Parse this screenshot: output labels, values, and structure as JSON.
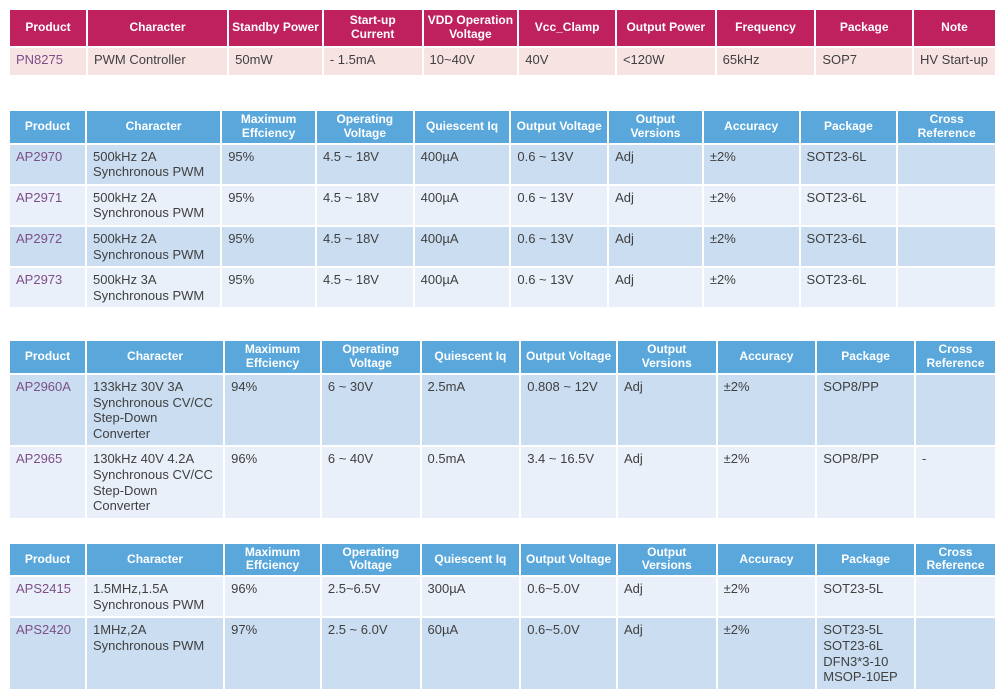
{
  "colors": {
    "red_header_bg": "#BE215E",
    "red_row_bg": "#F8E3E3",
    "blue_header_bg": "#59A7DB",
    "blue_row_dark_bg": "#CADDF1",
    "blue_row_light_bg": "#EAF0FA",
    "header_text": "#FFFFFF",
    "body_text": "#404040",
    "product_text": "#7D4E87"
  },
  "tables": [
    {
      "name": "pn8275-pwm-controller-table",
      "theme": "red",
      "columns": [
        "Product",
        "Character",
        "Standby Power",
        "Start-up Current",
        "VDD Operation Voltage",
        "Vcc_Clamp",
        "Output Power",
        "Frequency",
        "Package",
        "Note"
      ],
      "col_widths": [
        "7.9%",
        "14.3%",
        "9.6%",
        "10.1%",
        "9.7%",
        "9.9%",
        "10.1%",
        "10.1%",
        "9.9%",
        "8.4%"
      ],
      "rows": [
        {
          "shade": "pink",
          "cells": [
            "PN8275",
            "PWM Controller",
            "50mW",
            "- 1.5mA",
            "10~40V",
            "40V",
            "<120W",
            "65kHz",
            "SOP7",
            "HV Start-up"
          ]
        }
      ]
    },
    {
      "name": "ap2970-series-table",
      "theme": "blue",
      "columns": [
        "Product",
        "Character",
        "Maximum Effciency",
        "Operating Voltage",
        "Quiescent Iq",
        "Output Voltage",
        "Output Versions",
        "Accuracy",
        "Package",
        "Cross Reference"
      ],
      "col_widths": [
        "7.8%",
        "13.7%",
        "9.6%",
        "9.9%",
        "9.8%",
        "9.9%",
        "9.6%",
        "9.8%",
        "9.9%",
        "10.0%"
      ],
      "rows": [
        {
          "shade": "dark",
          "cells": [
            "AP2970",
            "500kHz 2A Synchronous PWM",
            "95%",
            "4.5 ~ 18V",
            "400µA",
            "0.6 ~ 13V",
            "Adj",
            "±2%",
            "SOT23-6L",
            ""
          ]
        },
        {
          "shade": "light",
          "cells": [
            "AP2971",
            "500kHz 2A Synchronous PWM",
            "95%",
            "4.5 ~ 18V",
            "400µA",
            "0.6 ~ 13V",
            "Adj",
            "±2%",
            "SOT23-6L",
            ""
          ]
        },
        {
          "shade": "dark",
          "cells": [
            "AP2972",
            "500kHz 2A Synchronous PWM",
            "95%",
            "4.5 ~ 18V",
            "400µA",
            "0.6 ~ 13V",
            "Adj",
            "±2%",
            "SOT23-6L",
            ""
          ]
        },
        {
          "shade": "light",
          "cells": [
            "AP2973",
            "500kHz 3A Synchronous PWM",
            "95%",
            "4.5 ~ 18V",
            "400µA",
            "0.6 ~ 13V",
            "Adj",
            "±2%",
            "SOT23-6L",
            ""
          ]
        }
      ]
    },
    {
      "name": "ap2960-series-table",
      "theme": "blue",
      "columns": [
        "Product",
        "Character",
        "Maximum Effciency",
        "Operating Voltage",
        "Quiescent Iq",
        "Output Voltage",
        "Output Versions",
        "Accuracy",
        "Package",
        "Cross Reference"
      ],
      "col_widths": [
        "7.8%",
        "14.0%",
        "9.8%",
        "10.1%",
        "10.1%",
        "9.8%",
        "10.1%",
        "10.1%",
        "10.0%",
        "8.2%"
      ],
      "rows": [
        {
          "shade": "dark",
          "cells": [
            "AP2960A",
            "133kHz 30V 3A Synchronous CV/CC Step-Down Converter",
            "94%",
            "6 ~ 30V",
            "2.5mA",
            "0.808 ~ 12V",
            "Adj",
            "±2%",
            "SOP8/PP",
            ""
          ]
        },
        {
          "shade": "light",
          "cells": [
            "AP2965",
            "130kHz 40V 4.2A Synchronous CV/CC Step-Down Converter",
            "96%",
            "6 ~ 40V",
            "0.5mA",
            "3.4 ~ 16.5V",
            "Adj",
            "±2%",
            "SOP8/PP",
            "-"
          ]
        }
      ]
    },
    {
      "name": "aps2400-series-table",
      "theme": "blue",
      "columns": [
        "Product",
        "Character",
        "Maximum Effciency",
        "Operating Voltage",
        "Quiescent Iq",
        "Output Voltage",
        "Output Versions",
        "Accuracy",
        "Package",
        "Cross Reference"
      ],
      "col_widths": [
        "7.8%",
        "14.0%",
        "9.8%",
        "10.1%",
        "10.1%",
        "9.8%",
        "10.1%",
        "10.1%",
        "10.0%",
        "8.2%"
      ],
      "rows": [
        {
          "shade": "light",
          "cells": [
            "APS2415",
            "1.5MHz,1.5A Synchronous PWM",
            "96%",
            "2.5~6.5V",
            "300µA",
            "0.6~5.0V",
            "Adj",
            "±2%",
            "SOT23-5L",
            ""
          ]
        },
        {
          "shade": "dark",
          "cells": [
            "APS2420",
            "1MHz,2A Synchronous PWM",
            "97%",
            "2.5 ~ 6.0V",
            "60µA",
            "0.6~5.0V",
            "Adj",
            "±2%",
            "SOT23-5L\nSOT23-6L\nDFN3*3-10\nMSOP-10EP",
            ""
          ]
        }
      ]
    }
  ]
}
